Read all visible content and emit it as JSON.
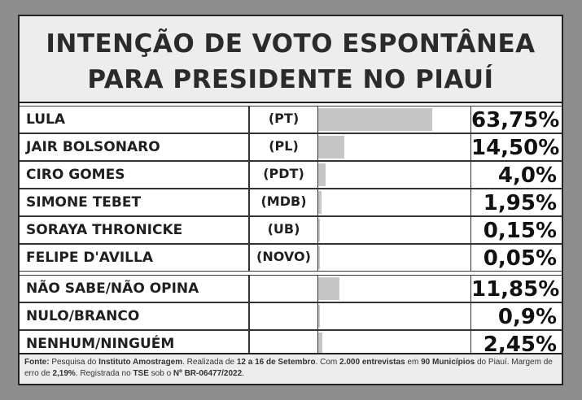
{
  "title_line1": "INTENÇÃO DE VOTO ESPONTÂNEA",
  "title_line2": "PARA PRESIDENTE NO PIAUÍ",
  "chart_data": {
    "type": "bar",
    "title": "INTENÇÃO DE VOTO ESPONTÂNEA PARA PRESIDENTE NO PIAUÍ",
    "xlim": [
      0,
      85
    ],
    "rows": [
      {
        "name": "LULA",
        "party": "(PT)",
        "value": 63.75,
        "label": "63,75%"
      },
      {
        "name": "JAIR BOLSONARO",
        "party": "(PL)",
        "value": 14.5,
        "label": "14,50%"
      },
      {
        "name": "CIRO GOMES",
        "party": "(PDT)",
        "value": 4.0,
        "label": "4,0%"
      },
      {
        "name": "SIMONE TEBET",
        "party": "(MDB)",
        "value": 1.95,
        "label": "1,95%"
      },
      {
        "name": "SORAYA THRONICKE",
        "party": "(UB)",
        "value": 0.15,
        "label": "0,15%"
      },
      {
        "name": "FELIPE D'AVILLA",
        "party": "(NOVO)",
        "value": 0.05,
        "label": "0,05%"
      },
      {
        "name": "NÃO SABE/NÃO OPINA",
        "party": "",
        "value": 11.85,
        "label": "11,85%"
      },
      {
        "name": "NULO/BRANCO",
        "party": "",
        "value": 0.9,
        "label": "0,9%"
      },
      {
        "name": "NENHUM/NINGUÉM",
        "party": "",
        "value": 2.45,
        "label": "2,45%"
      }
    ]
  },
  "source": {
    "label": "Fonte:",
    "t1": " Pesquisa do ",
    "b1": "Instituto Amostragem",
    "t2": ". Realizada de ",
    "b2": "12 a 16 de Setembro",
    "t3": ". Com ",
    "b3": "2.000 entrevistas",
    "t4": " em ",
    "b4": "90 Municípios",
    "t5": " do Piauí. Margem de erro de ",
    "b5": "2,19%",
    "t6": ". Registrada no ",
    "b6": "TSE",
    "t7": " sob o ",
    "b7": "Nº BR-06477/2022",
    "t8": "."
  }
}
